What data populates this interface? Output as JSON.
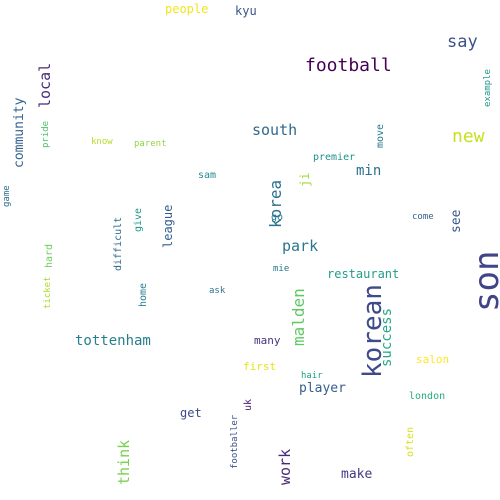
{
  "words": [
    {
      "text": "son",
      "color": "#414487"
    },
    {
      "text": "korean",
      "color": "#3e4a89"
    },
    {
      "text": "football",
      "color": "#440154"
    },
    {
      "text": "say",
      "color": "#3b528b"
    },
    {
      "text": "new",
      "color": "#c8e020"
    },
    {
      "text": "south",
      "color": "#31688e"
    },
    {
      "text": "korea",
      "color": "#2d708e"
    },
    {
      "text": "park",
      "color": "#2a768e"
    },
    {
      "text": "malden",
      "color": "#5ec962"
    },
    {
      "text": "local",
      "color": "#472a7a"
    },
    {
      "text": "community",
      "color": "#33628d"
    },
    {
      "text": "tottenham",
      "color": "#277f8e"
    },
    {
      "text": "success",
      "color": "#22a884"
    },
    {
      "text": "think",
      "color": "#7ad151"
    },
    {
      "text": "work",
      "color": "#482878"
    },
    {
      "text": "min",
      "color": "#2c728e"
    },
    {
      "text": "restaurant",
      "color": "#1f9e89"
    },
    {
      "text": "make",
      "color": "#443983"
    },
    {
      "text": "player",
      "color": "#355f8d"
    },
    {
      "text": "people",
      "color": "#f1e51d"
    },
    {
      "text": "kyu",
      "color": "#3a548c"
    },
    {
      "text": "league",
      "color": "#365c8d"
    },
    {
      "text": "see",
      "color": "#39568c"
    },
    {
      "text": "premier",
      "color": "#21918c"
    },
    {
      "text": "ji",
      "color": "#a0da39"
    },
    {
      "text": "move",
      "color": "#2a788e"
    },
    {
      "text": "get",
      "color": "#3e4989"
    },
    {
      "text": "many",
      "color": "#463480"
    },
    {
      "text": "first",
      "color": "#e5e419"
    },
    {
      "text": "salon",
      "color": "#fde725"
    },
    {
      "text": "london",
      "color": "#25ac82"
    },
    {
      "text": "hard",
      "color": "#6ece58"
    },
    {
      "text": "give",
      "color": "#1f988b"
    },
    {
      "text": "home",
      "color": "#26828e"
    },
    {
      "text": "difficult",
      "color": "#2f6c8e"
    },
    {
      "text": "sam",
      "color": "#238a8d"
    },
    {
      "text": "go",
      "color": "#277e8e"
    },
    {
      "text": "hair",
      "color": "#1fa187"
    },
    {
      "text": "uk",
      "color": "#482475"
    },
    {
      "text": "often",
      "color": "#d8e219"
    },
    {
      "text": "example",
      "color": "#1f968b"
    },
    {
      "text": "pride",
      "color": "#4ac16d"
    },
    {
      "text": "know",
      "color": "#b5de2b"
    },
    {
      "text": "parent",
      "color": "#8fd744"
    },
    {
      "text": "game",
      "color": "#2e6e8e"
    },
    {
      "text": "ticket",
      "color": "#addc30"
    },
    {
      "text": "ask",
      "color": "#2d718e"
    },
    {
      "text": "mie",
      "color": "#29798e"
    },
    {
      "text": "come",
      "color": "#34608d"
    },
    {
      "text": "footballer",
      "color": "#3c4f8a"
    }
  ]
}
